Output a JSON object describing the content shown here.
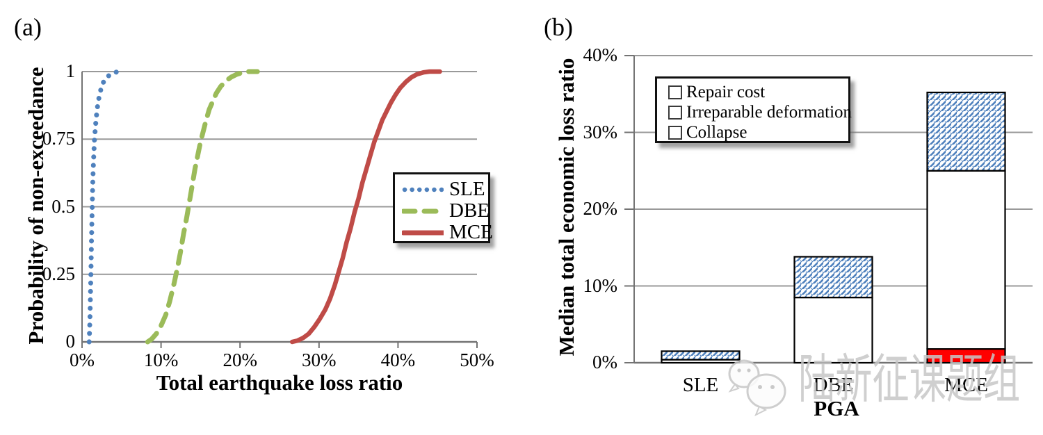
{
  "panels": {
    "a": {
      "label": "(a)"
    },
    "b": {
      "label": "(b)"
    }
  },
  "chart_data": [
    {
      "id": "cdf-total-earthquake-loss",
      "type": "line",
      "title": "",
      "xlabel": "Total earthquake loss ratio",
      "ylabel": "Probability of non-exceedance",
      "xlim": [
        0,
        50
      ],
      "ylim": [
        0,
        1
      ],
      "xtick_values": [
        0,
        10,
        20,
        30,
        40,
        50
      ],
      "xtick_labels": [
        "0%",
        "10%",
        "20%",
        "30%",
        "40%",
        "50%"
      ],
      "ytick_values": [
        0,
        0.25,
        0.5,
        0.75,
        1
      ],
      "ytick_labels": [
        "0",
        "0.25",
        "0.5",
        "0.75",
        "1"
      ],
      "grid": "horizontal",
      "legend_position": "middle-right",
      "series": [
        {
          "name": "SLE",
          "color": "#4f81bd",
          "style": "dotted",
          "points": [
            [
              0.9,
              0
            ],
            [
              0.95,
              0.04
            ],
            [
              1.0,
              0.09
            ],
            [
              1.05,
              0.15
            ],
            [
              1.1,
              0.22
            ],
            [
              1.15,
              0.3
            ],
            [
              1.2,
              0.38
            ],
            [
              1.25,
              0.45
            ],
            [
              1.3,
              0.52
            ],
            [
              1.35,
              0.58
            ],
            [
              1.42,
              0.64
            ],
            [
              1.5,
              0.7
            ],
            [
              1.58,
              0.75
            ],
            [
              1.68,
              0.79
            ],
            [
              1.8,
              0.83
            ],
            [
              1.95,
              0.87
            ],
            [
              2.12,
              0.9
            ],
            [
              2.35,
              0.93
            ],
            [
              2.6,
              0.955
            ],
            [
              2.9,
              0.97
            ],
            [
              3.25,
              0.982
            ],
            [
              3.65,
              0.99
            ],
            [
              4.1,
              0.996
            ],
            [
              4.55,
              1.0
            ],
            [
              4.9,
              1.0
            ]
          ]
        },
        {
          "name": "DBE",
          "color": "#9bbb59",
          "style": "dashed",
          "points": [
            [
              8.3,
              0
            ],
            [
              8.8,
              0.01
            ],
            [
              9.4,
              0.03
            ],
            [
              10.0,
              0.06
            ],
            [
              10.6,
              0.1
            ],
            [
              11.1,
              0.15
            ],
            [
              11.6,
              0.21
            ],
            [
              12.05,
              0.27
            ],
            [
              12.45,
              0.33
            ],
            [
              12.85,
              0.4
            ],
            [
              13.25,
              0.46
            ],
            [
              13.6,
              0.52
            ],
            [
              13.95,
              0.58
            ],
            [
              14.3,
              0.64
            ],
            [
              14.65,
              0.69
            ],
            [
              15.0,
              0.74
            ],
            [
              15.35,
              0.78
            ],
            [
              15.7,
              0.82
            ],
            [
              16.1,
              0.86
            ],
            [
              16.55,
              0.89
            ],
            [
              17.0,
              0.92
            ],
            [
              17.55,
              0.945
            ],
            [
              18.2,
              0.965
            ],
            [
              18.9,
              0.98
            ],
            [
              19.6,
              0.99
            ],
            [
              20.4,
              0.997
            ],
            [
              21.0,
              1.0
            ],
            [
              22.2,
              1.0
            ]
          ]
        },
        {
          "name": "MCE",
          "color": "#bf4b47",
          "style": "solid",
          "points": [
            [
              26.6,
              0
            ],
            [
              27.3,
              0.005
            ],
            [
              28.0,
              0.015
            ],
            [
              28.7,
              0.03
            ],
            [
              29.4,
              0.055
            ],
            [
              30.1,
              0.085
            ],
            [
              30.8,
              0.12
            ],
            [
              31.4,
              0.16
            ],
            [
              32.0,
              0.21
            ],
            [
              32.5,
              0.26
            ],
            [
              33.0,
              0.31
            ],
            [
              33.5,
              0.37
            ],
            [
              34.0,
              0.42
            ],
            [
              34.5,
              0.48
            ],
            [
              35.0,
              0.53
            ],
            [
              35.5,
              0.59
            ],
            [
              36.0,
              0.64
            ],
            [
              36.5,
              0.69
            ],
            [
              37.0,
              0.74
            ],
            [
              37.5,
              0.78
            ],
            [
              38.0,
              0.82
            ],
            [
              38.5,
              0.85
            ],
            [
              39.1,
              0.885
            ],
            [
              39.7,
              0.915
            ],
            [
              40.3,
              0.94
            ],
            [
              41.0,
              0.962
            ],
            [
              41.7,
              0.979
            ],
            [
              42.4,
              0.99
            ],
            [
              43.2,
              0.997
            ],
            [
              44.0,
              1.0
            ],
            [
              45.3,
              1.0
            ]
          ]
        }
      ]
    },
    {
      "id": "median-economic-loss-bars",
      "type": "bar",
      "stacked": true,
      "title": "",
      "xlabel": "PGA",
      "ylabel": "Median total economic loss ratio",
      "ylim": [
        0,
        40
      ],
      "ytick_values": [
        0,
        10,
        20,
        30,
        40
      ],
      "ytick_labels": [
        "0%",
        "10%",
        "20%",
        "30%",
        "40%"
      ],
      "categories": [
        "SLE",
        "DBE",
        "MCE"
      ],
      "grid": "horizontal",
      "legend_position": "top-left",
      "series": [
        {
          "name": "Repair cost",
          "fill": "hatch",
          "color": "#4f81bd",
          "values": [
            1.1,
            5.3,
            10.2
          ]
        },
        {
          "name": "Irreparable deformation",
          "fill": "solid",
          "color": "#ffffff",
          "values": [
            0.4,
            8.5,
            23.2
          ]
        },
        {
          "name": "Collapse",
          "fill": "solid",
          "color": "#ff0000",
          "values": [
            0,
            0,
            1.8
          ]
        }
      ],
      "stack_bottom_to_top": [
        "Collapse",
        "Irreparable deformation",
        "Repair cost"
      ],
      "stack_totals": [
        1.5,
        13.8,
        35.2
      ]
    }
  ],
  "watermark": {
    "text": "陆新征课题组",
    "icon": "wechat-icon",
    "color": "#c7c7c7"
  },
  "style_colors": {
    "grid": "#999999",
    "axis": "#737373",
    "bar_border": "#000000",
    "hatch_blue": "#4f81bd",
    "collapse_red": "#ff0000"
  }
}
